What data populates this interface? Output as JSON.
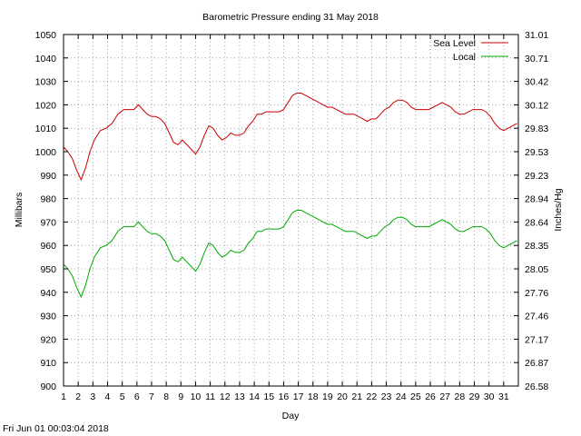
{
  "footer_timestamp": "Fri Jun 01 00:03:04 2018",
  "chart_data": {
    "type": "line",
    "title": "Barometric Pressure ending 31 May 2018",
    "xlabel": "Day",
    "ylabel": "Millibars",
    "y2label": "Inches/Hg",
    "xlim": [
      1,
      32
    ],
    "ylim": [
      900,
      1050
    ],
    "y2lim": [
      26.58,
      31.01
    ],
    "x_ticks": [
      "1",
      "2",
      "3",
      "4",
      "5",
      "6",
      "7",
      "8",
      "9",
      "10",
      "11",
      "12",
      "13",
      "14",
      "15",
      "16",
      "17",
      "18",
      "19",
      "20",
      "21",
      "22",
      "23",
      "24",
      "25",
      "26",
      "27",
      "28",
      "29",
      "30",
      "31"
    ],
    "y_ticks": [
      "900",
      "910",
      "920",
      "930",
      "940",
      "950",
      "960",
      "970",
      "980",
      "990",
      "1000",
      "1010",
      "1020",
      "1030",
      "1040",
      "1050"
    ],
    "y2_ticks": [
      "26.58",
      "26.87",
      "27.17",
      "27.46",
      "27.76",
      "28.05",
      "28.35",
      "28.64",
      "28.94",
      "29.23",
      "29.53",
      "29.83",
      "30.12",
      "30.42",
      "30.71",
      "31.01"
    ],
    "grid": true,
    "legend_position": "top-right",
    "series": [
      {
        "name": "Sea Level",
        "color": "#cc0000",
        "points": [
          [
            1.0,
            1002
          ],
          [
            1.3,
            1000
          ],
          [
            1.6,
            997
          ],
          [
            1.9,
            992
          ],
          [
            2.2,
            988
          ],
          [
            2.5,
            993
          ],
          [
            2.8,
            1000
          ],
          [
            3.1,
            1005
          ],
          [
            3.5,
            1009
          ],
          [
            3.9,
            1010
          ],
          [
            4.3,
            1012
          ],
          [
            4.7,
            1016
          ],
          [
            5.1,
            1018
          ],
          [
            5.5,
            1018
          ],
          [
            5.8,
            1018
          ],
          [
            6.1,
            1020
          ],
          [
            6.4,
            1018
          ],
          [
            6.7,
            1016
          ],
          [
            7.0,
            1015
          ],
          [
            7.3,
            1015
          ],
          [
            7.6,
            1014
          ],
          [
            7.9,
            1012
          ],
          [
            8.2,
            1008
          ],
          [
            8.5,
            1004
          ],
          [
            8.8,
            1003
          ],
          [
            9.1,
            1005
          ],
          [
            9.4,
            1003
          ],
          [
            9.7,
            1001
          ],
          [
            10.0,
            999
          ],
          [
            10.3,
            1002
          ],
          [
            10.6,
            1007
          ],
          [
            10.9,
            1011
          ],
          [
            11.2,
            1010
          ],
          [
            11.5,
            1007
          ],
          [
            11.8,
            1005
          ],
          [
            12.1,
            1006
          ],
          [
            12.4,
            1008
          ],
          [
            12.7,
            1007
          ],
          [
            13.0,
            1007
          ],
          [
            13.3,
            1008
          ],
          [
            13.6,
            1011
          ],
          [
            13.9,
            1013
          ],
          [
            14.2,
            1016
          ],
          [
            14.5,
            1016
          ],
          [
            14.8,
            1017
          ],
          [
            15.1,
            1017
          ],
          [
            15.4,
            1017
          ],
          [
            15.7,
            1017
          ],
          [
            16.0,
            1018
          ],
          [
            16.3,
            1021
          ],
          [
            16.6,
            1024
          ],
          [
            16.9,
            1025
          ],
          [
            17.2,
            1025
          ],
          [
            17.5,
            1024
          ],
          [
            17.8,
            1023
          ],
          [
            18.1,
            1022
          ],
          [
            18.4,
            1021
          ],
          [
            18.7,
            1020
          ],
          [
            19.0,
            1019
          ],
          [
            19.3,
            1019
          ],
          [
            19.6,
            1018
          ],
          [
            19.9,
            1017
          ],
          [
            20.2,
            1016
          ],
          [
            20.5,
            1016
          ],
          [
            20.8,
            1016
          ],
          [
            21.1,
            1015
          ],
          [
            21.4,
            1014
          ],
          [
            21.7,
            1013
          ],
          [
            22.0,
            1014
          ],
          [
            22.3,
            1014
          ],
          [
            22.6,
            1016
          ],
          [
            22.9,
            1018
          ],
          [
            23.2,
            1019
          ],
          [
            23.5,
            1021
          ],
          [
            23.8,
            1022
          ],
          [
            24.1,
            1022
          ],
          [
            24.4,
            1021
          ],
          [
            24.7,
            1019
          ],
          [
            25.0,
            1018
          ],
          [
            25.3,
            1018
          ],
          [
            25.6,
            1018
          ],
          [
            25.9,
            1018
          ],
          [
            26.2,
            1019
          ],
          [
            26.5,
            1020
          ],
          [
            26.8,
            1021
          ],
          [
            27.1,
            1020
          ],
          [
            27.4,
            1019
          ],
          [
            27.7,
            1017
          ],
          [
            28.0,
            1016
          ],
          [
            28.3,
            1016
          ],
          [
            28.6,
            1017
          ],
          [
            28.9,
            1018
          ],
          [
            29.2,
            1018
          ],
          [
            29.5,
            1018
          ],
          [
            29.8,
            1017
          ],
          [
            30.1,
            1015
          ],
          [
            30.4,
            1012
          ],
          [
            30.7,
            1010
          ],
          [
            31.0,
            1009
          ],
          [
            31.3,
            1010
          ],
          [
            31.6,
            1011
          ],
          [
            31.9,
            1012
          ]
        ]
      },
      {
        "name": "Local",
        "color": "#00aa00",
        "points": [
          [
            1.0,
            952
          ],
          [
            1.3,
            950
          ],
          [
            1.6,
            947
          ],
          [
            1.9,
            942
          ],
          [
            2.2,
            938
          ],
          [
            2.5,
            943
          ],
          [
            2.8,
            950
          ],
          [
            3.1,
            955
          ],
          [
            3.5,
            959
          ],
          [
            3.9,
            960
          ],
          [
            4.3,
            962
          ],
          [
            4.7,
            966
          ],
          [
            5.1,
            968
          ],
          [
            5.5,
            968
          ],
          [
            5.8,
            968
          ],
          [
            6.1,
            970
          ],
          [
            6.4,
            968
          ],
          [
            6.7,
            966
          ],
          [
            7.0,
            965
          ],
          [
            7.3,
            965
          ],
          [
            7.6,
            964
          ],
          [
            7.9,
            962
          ],
          [
            8.2,
            958
          ],
          [
            8.5,
            954
          ],
          [
            8.8,
            953
          ],
          [
            9.1,
            955
          ],
          [
            9.4,
            953
          ],
          [
            9.7,
            951
          ],
          [
            10.0,
            949
          ],
          [
            10.3,
            952
          ],
          [
            10.6,
            957
          ],
          [
            10.9,
            961
          ],
          [
            11.2,
            960
          ],
          [
            11.5,
            957
          ],
          [
            11.8,
            955
          ],
          [
            12.1,
            956
          ],
          [
            12.4,
            958
          ],
          [
            12.7,
            957
          ],
          [
            13.0,
            957
          ],
          [
            13.3,
            958
          ],
          [
            13.6,
            961
          ],
          [
            13.9,
            963
          ],
          [
            14.2,
            966
          ],
          [
            14.5,
            966
          ],
          [
            14.8,
            967
          ],
          [
            15.1,
            967
          ],
          [
            15.4,
            967
          ],
          [
            15.7,
            967
          ],
          [
            16.0,
            968
          ],
          [
            16.3,
            971
          ],
          [
            16.6,
            974
          ],
          [
            16.9,
            975
          ],
          [
            17.2,
            975
          ],
          [
            17.5,
            974
          ],
          [
            17.8,
            973
          ],
          [
            18.1,
            972
          ],
          [
            18.4,
            971
          ],
          [
            18.7,
            970
          ],
          [
            19.0,
            969
          ],
          [
            19.3,
            969
          ],
          [
            19.6,
            968
          ],
          [
            19.9,
            967
          ],
          [
            20.2,
            966
          ],
          [
            20.5,
            966
          ],
          [
            20.8,
            966
          ],
          [
            21.1,
            965
          ],
          [
            21.4,
            964
          ],
          [
            21.7,
            963
          ],
          [
            22.0,
            964
          ],
          [
            22.3,
            964
          ],
          [
            22.6,
            966
          ],
          [
            22.9,
            968
          ],
          [
            23.2,
            969
          ],
          [
            23.5,
            971
          ],
          [
            23.8,
            972
          ],
          [
            24.1,
            972
          ],
          [
            24.4,
            971
          ],
          [
            24.7,
            969
          ],
          [
            25.0,
            968
          ],
          [
            25.3,
            968
          ],
          [
            25.6,
            968
          ],
          [
            25.9,
            968
          ],
          [
            26.2,
            969
          ],
          [
            26.5,
            970
          ],
          [
            26.8,
            971
          ],
          [
            27.1,
            970
          ],
          [
            27.4,
            969
          ],
          [
            27.7,
            967
          ],
          [
            28.0,
            966
          ],
          [
            28.3,
            966
          ],
          [
            28.6,
            967
          ],
          [
            28.9,
            968
          ],
          [
            29.2,
            968
          ],
          [
            29.5,
            968
          ],
          [
            29.8,
            967
          ],
          [
            30.1,
            965
          ],
          [
            30.4,
            962
          ],
          [
            30.7,
            960
          ],
          [
            31.0,
            959
          ],
          [
            31.3,
            960
          ],
          [
            31.6,
            961
          ],
          [
            31.9,
            962
          ]
        ]
      }
    ]
  }
}
